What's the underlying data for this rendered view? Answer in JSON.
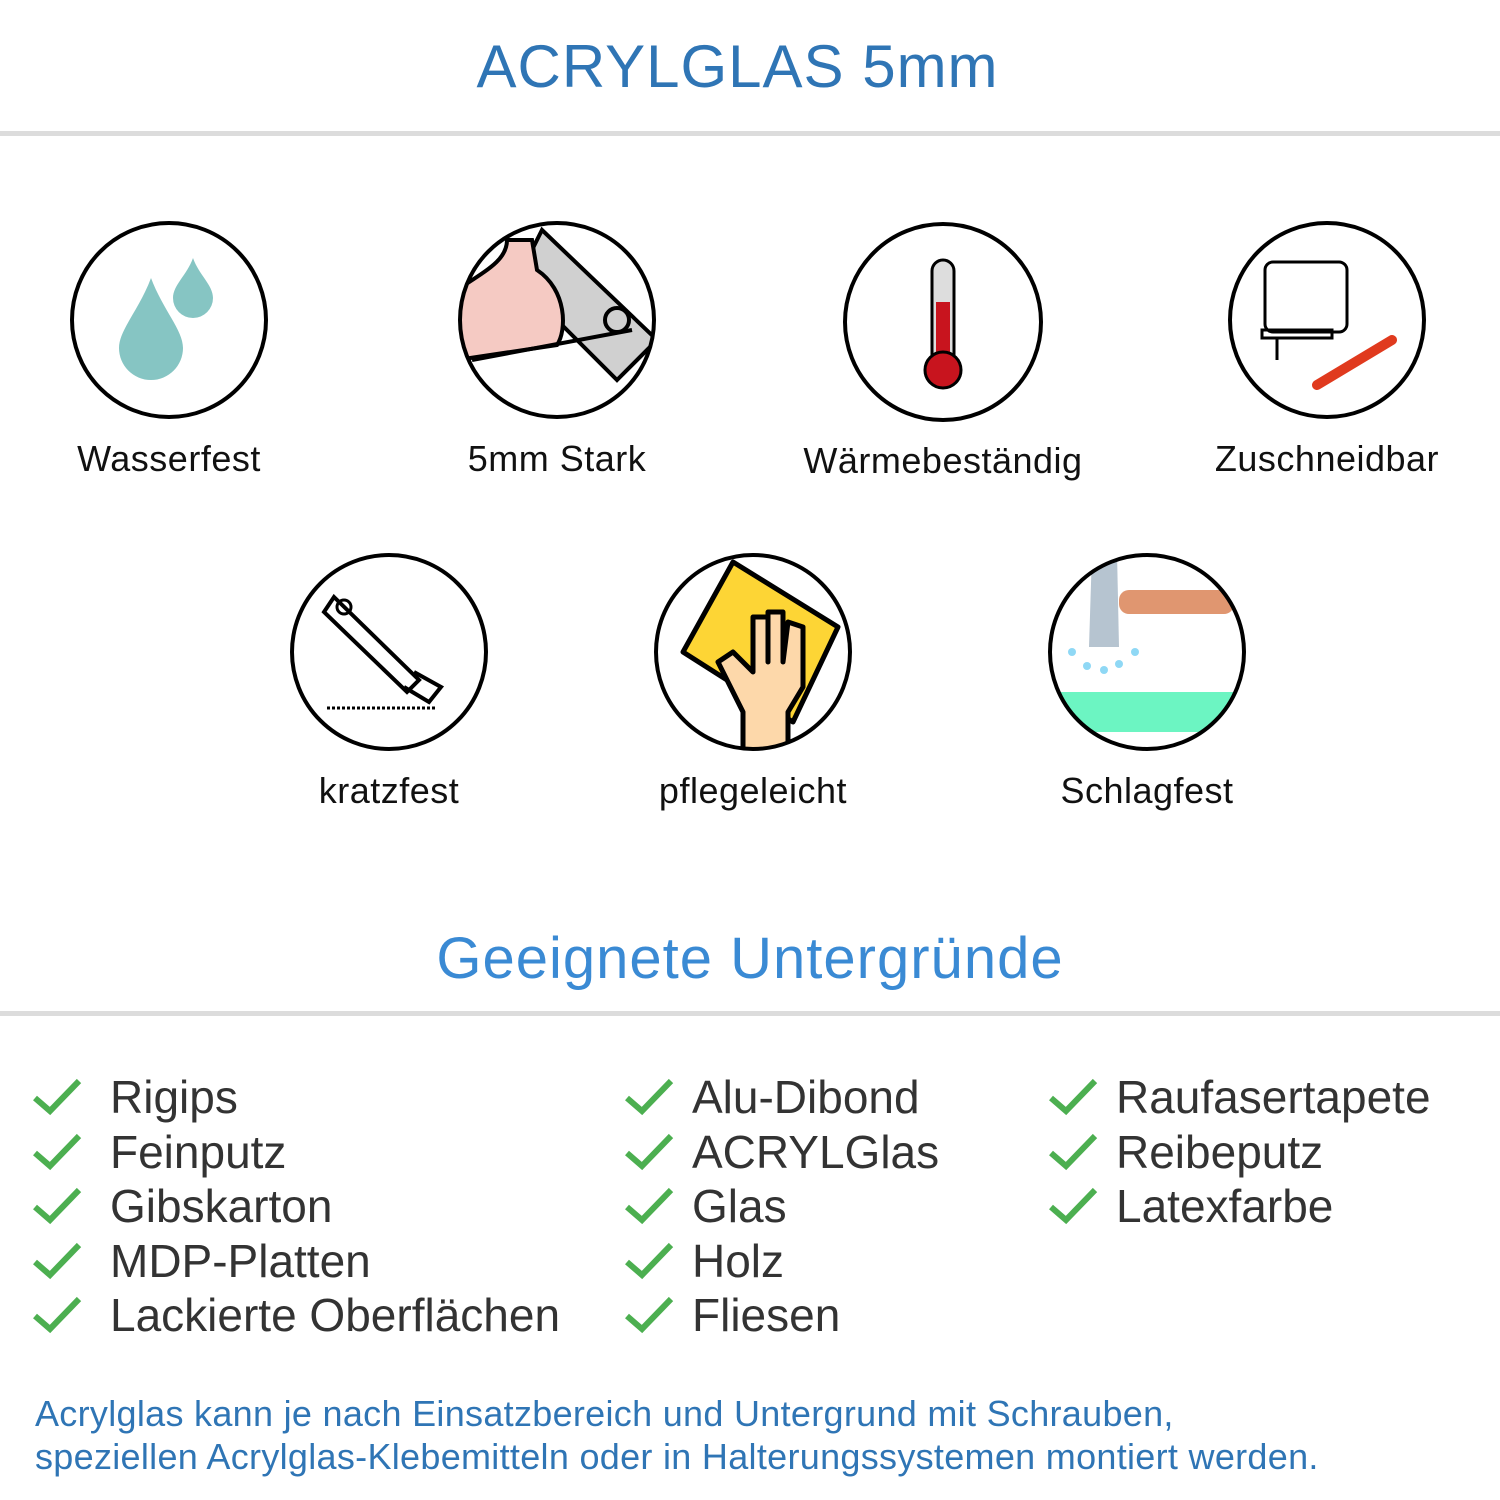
{
  "title": "ACRYLGLAS 5mm",
  "features": [
    {
      "label": "Wasserfest",
      "icon": "water-drops-icon"
    },
    {
      "label": "5mm Stark",
      "icon": "strong-arm-icon"
    },
    {
      "label": "Wärmebeständig",
      "icon": "thermometer-icon"
    },
    {
      "label": "Zuschneidbar",
      "icon": "jigsaw-cutter-icon"
    },
    {
      "label": "kratzfest",
      "icon": "utility-knife-icon"
    },
    {
      "label": "pflegeleicht",
      "icon": "cleaning-hand-icon"
    },
    {
      "label": "Schlagfest",
      "icon": "hammer-icon"
    }
  ],
  "surfaces_heading": "Geeignete Untergründe",
  "surfaces": {
    "col1": [
      "Rigips",
      "Feinputz",
      "Gibskarton",
      "MDP-Platten",
      "Lackierte Oberflächen"
    ],
    "col2": [
      "Alu-Dibond",
      "ACRYLGlas",
      "Glas",
      "Holz",
      "Fliesen"
    ],
    "col3": [
      "Raufasertapete",
      "Reibeputz",
      "Latexfarbe"
    ]
  },
  "footer": {
    "line1": "Acrylglas kann je nach Einsatzbereich und Untergrund mit Schrauben,",
    "line2": "speziellen Acrylglas-Klebemitteln oder in Halterungssystemen montiert werden."
  },
  "colors": {
    "title": "#2f75b5",
    "heading": "#3a8ad4",
    "check": "#4caf50",
    "rule": "#dcdcdc"
  }
}
